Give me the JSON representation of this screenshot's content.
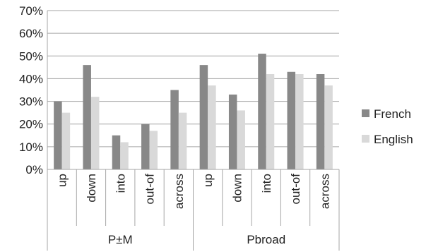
{
  "chart_data": {
    "type": "bar",
    "title": "",
    "xlabel": "",
    "ylabel": "",
    "ylim": [
      0,
      70
    ],
    "y_tick_step": 10,
    "y_tick_format": "percent",
    "grid": true,
    "legend_position": "right",
    "categories": [
      "up",
      "down",
      "into",
      "out-of",
      "across",
      "up",
      "down",
      "into",
      "out-of",
      "across"
    ],
    "groups": [
      {
        "label": "P±M",
        "count": 5
      },
      {
        "label": "Pbroad",
        "count": 5
      }
    ],
    "series": [
      {
        "name": "French",
        "color": "#888888",
        "values": [
          30,
          46,
          15,
          20,
          35,
          46,
          33,
          51,
          43,
          42
        ]
      },
      {
        "name": "English",
        "color": "#d9d9d9",
        "values": [
          25,
          32,
          12,
          17,
          25,
          37,
          26,
          42,
          42,
          37
        ]
      }
    ]
  }
}
